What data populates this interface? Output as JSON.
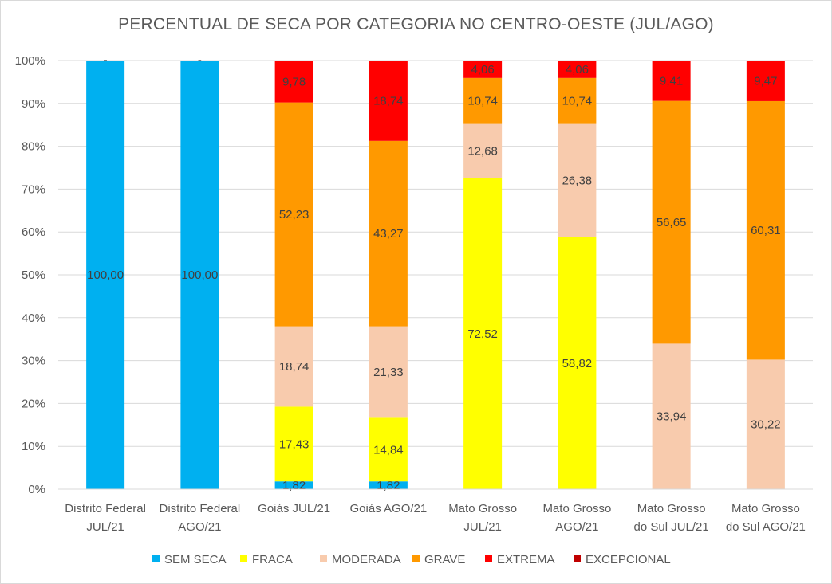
{
  "chart_data": {
    "type": "bar",
    "stacked": true,
    "title": "PERCENTUAL DE SECA POR CATEGORIA NO CENTRO-OESTE (JUL/AGO)",
    "categories": [
      [
        "Distrito Federal",
        "JUL/21"
      ],
      [
        "Distrito Federal",
        "AGO/21"
      ],
      [
        "Goiás JUL/21"
      ],
      [
        "Goiás AGO/21"
      ],
      [
        "Mato Grosso",
        "JUL/21"
      ],
      [
        "Mato Grosso",
        "AGO/21"
      ],
      [
        "Mato Grosso",
        "do Sul JUL/21"
      ],
      [
        "Mato Grosso",
        "do Sul AGO/21"
      ]
    ],
    "ylim": [
      0,
      100
    ],
    "yticks": [
      "0%",
      "10%",
      "20%",
      "30%",
      "40%",
      "50%",
      "60%",
      "70%",
      "80%",
      "90%",
      "100%"
    ],
    "grid": true,
    "legend_position": "bottom",
    "series": [
      {
        "name": "SEM SECA",
        "color": "#00b0f0",
        "values": [
          100,
          100,
          1.82,
          1.82,
          0,
          0,
          0,
          0
        ],
        "labels": [
          "100,00",
          "100,00",
          "1,82",
          "1,82",
          "-",
          "-",
          "-",
          "-"
        ]
      },
      {
        "name": "FRACA",
        "color": "#ffff00",
        "values": [
          0,
          0,
          17.43,
          14.84,
          72.52,
          58.82,
          0,
          0
        ],
        "labels": [
          "",
          "",
          "17,43",
          "14,84",
          "72,52",
          "58,82",
          "",
          ""
        ]
      },
      {
        "name": "MODERADA",
        "color": "#f8cbad",
        "values": [
          0,
          0,
          18.74,
          21.33,
          12.68,
          26.38,
          33.94,
          30.22
        ],
        "labels": [
          "",
          "",
          "18,74",
          "21,33",
          "12,68",
          "26,38",
          "33,94",
          "30,22"
        ]
      },
      {
        "name": "GRAVE",
        "color": "#ff9900",
        "values": [
          0,
          0,
          52.23,
          43.27,
          10.74,
          10.74,
          56.65,
          60.31
        ],
        "labels": [
          "",
          "",
          "52,23",
          "43,27",
          "10,74",
          "10,74",
          "56,65",
          "60,31"
        ]
      },
      {
        "name": "EXTREMA",
        "color": "#ff0000",
        "values": [
          0,
          0,
          9.78,
          18.74,
          4.06,
          4.06,
          9.41,
          9.47
        ],
        "labels": [
          "-",
          "-",
          "9,78",
          "18,74",
          "4,06",
          "4,06",
          "9,41",
          "9,47"
        ]
      },
      {
        "name": "EXCEPCIONAL",
        "color": "#c00000",
        "values": [
          0,
          0,
          0,
          0,
          0,
          0,
          0,
          0
        ],
        "labels": [
          "",
          "",
          "",
          "",
          "",
          "",
          "",
          ""
        ]
      }
    ]
  }
}
